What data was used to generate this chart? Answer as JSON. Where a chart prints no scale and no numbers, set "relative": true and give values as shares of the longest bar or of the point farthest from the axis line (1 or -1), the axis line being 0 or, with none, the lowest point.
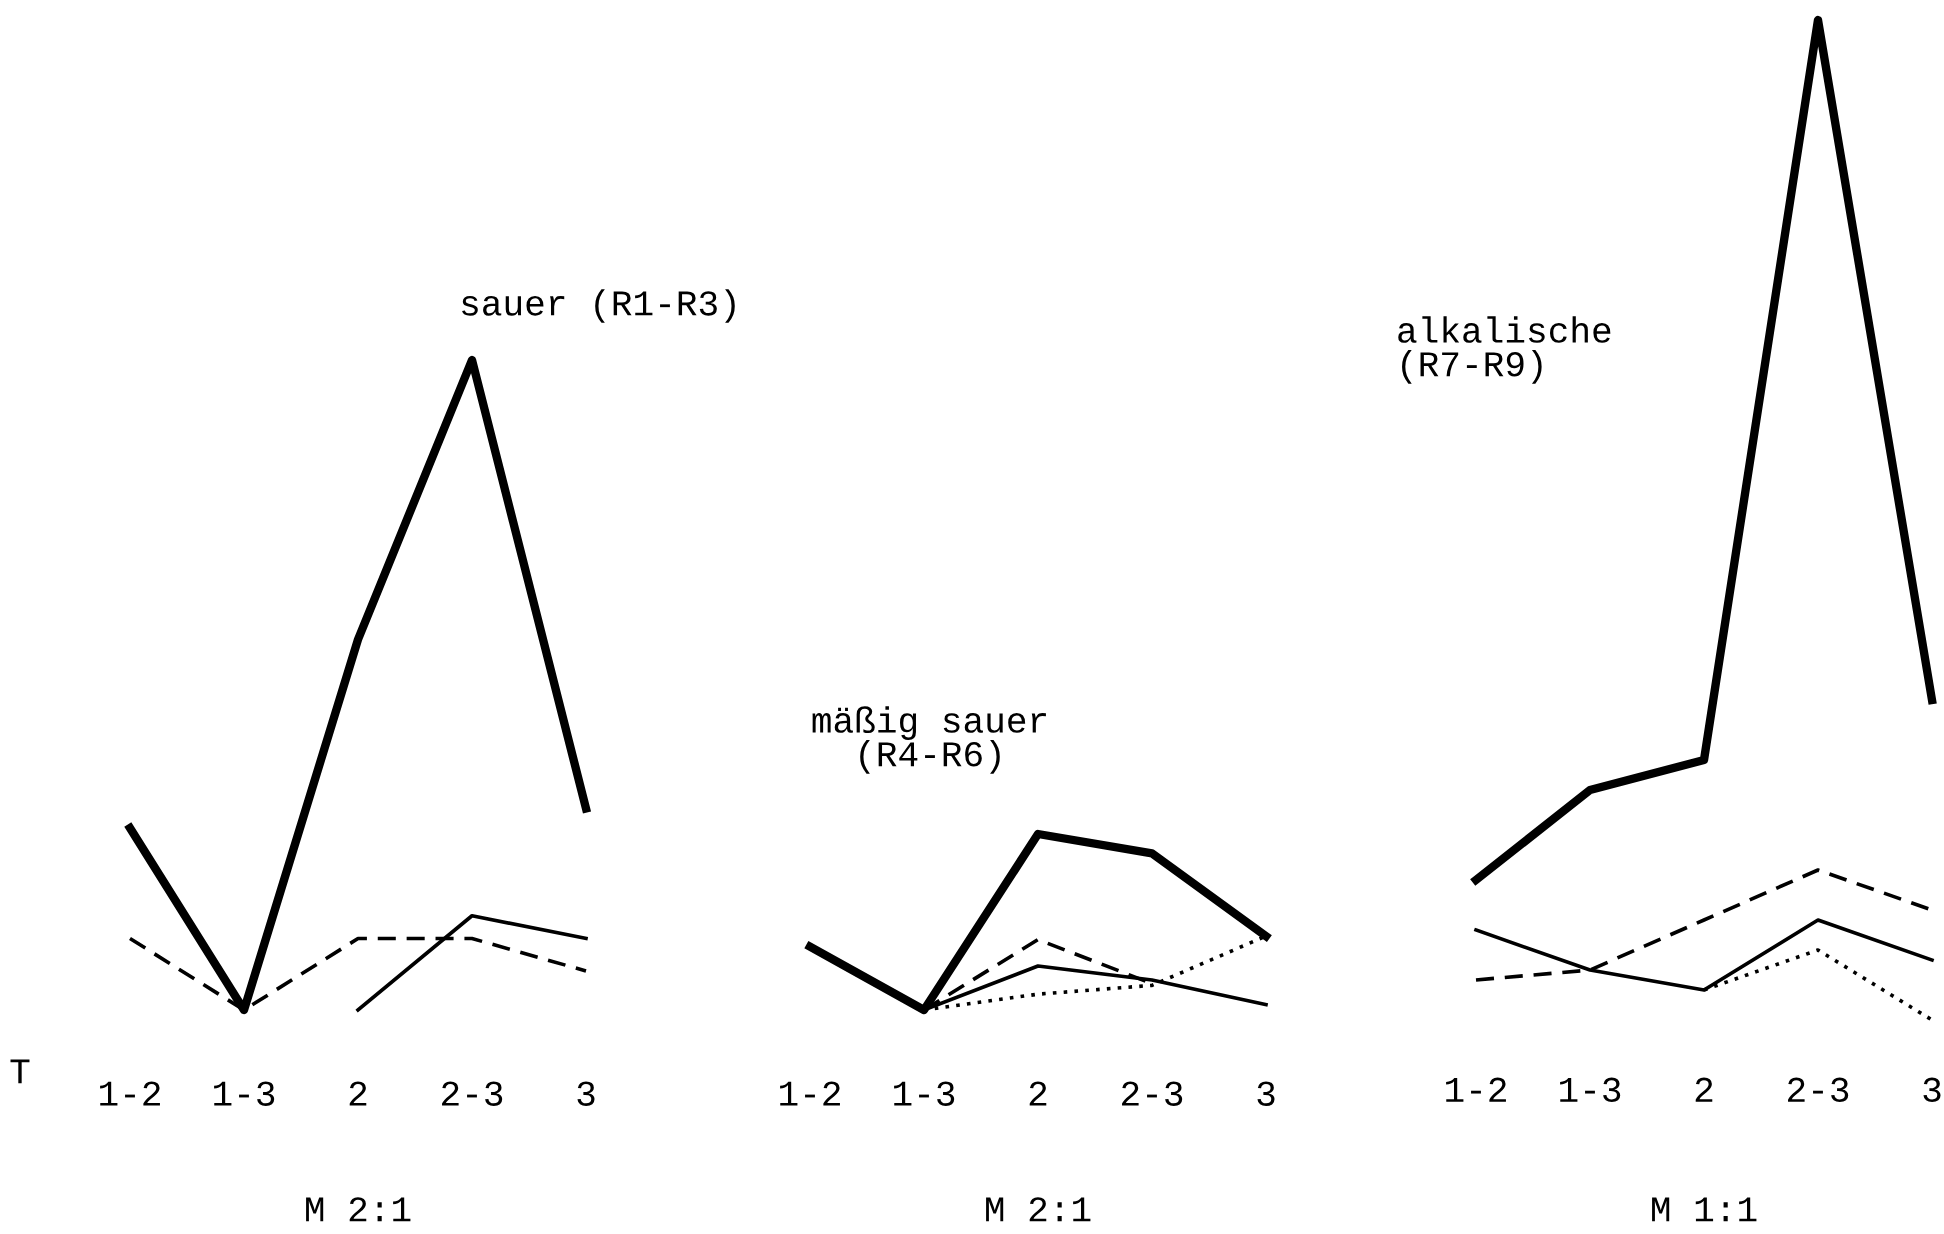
{
  "chart_data": [
    {
      "type": "line",
      "title": "sauer (R1-R3)",
      "xlabel": "T",
      "categories": [
        "1-2",
        "1-3",
        "2",
        "2-3",
        "3"
      ],
      "relative": true,
      "tick_labels": "x",
      "grid": false,
      "legend": false,
      "annotations": [
        "M 2:1"
      ],
      "series": [
        {
          "color": "#000000",
          "line_style": "solid",
          "values": [
            0.28,
            0,
            0.57,
            1,
            0.31
          ]
        },
        {
          "color": "#000000",
          "line_style": "dashed",
          "values": [
            0.11,
            0,
            0.11,
            0.11,
            0.06
          ]
        },
        {
          "color": "#000000",
          "line_style": "solid",
          "values": [
            null,
            null,
            0,
            0.145,
            0.11
          ]
        }
      ]
    },
    {
      "type": "line",
      "title": "mäßig sauer\n(R4-R6)",
      "categories": [
        "1-2",
        "1-3",
        "2",
        "2-3",
        "3"
      ],
      "relative": true,
      "tick_labels": "x",
      "grid": false,
      "legend": false,
      "annotations": [
        "M 2:1"
      ],
      "series": [
        {
          "color": "#000000",
          "line_style": "solid",
          "values": [
            0.36,
            0,
            1,
            0.89,
            0.42
          ]
        },
        {
          "color": "#000000",
          "line_style": "dashed",
          "values": [
            null,
            0,
            0.4,
            0.15,
            null
          ]
        },
        {
          "color": "#000000",
          "line_style": "solid",
          "values": [
            null,
            0,
            0.25,
            0.17,
            0.03
          ]
        },
        {
          "color": "#000000",
          "line_style": "dotted",
          "values": [
            null,
            0,
            0.09,
            0.14,
            0.42
          ]
        }
      ]
    },
    {
      "type": "line",
      "title": "alkalische\n(R7-R9)",
      "categories": [
        "1-2",
        "1-3",
        "2",
        "2-3",
        "3"
      ],
      "relative": true,
      "tick_labels": "x",
      "grid": false,
      "legend": false,
      "annotations": [
        "M 1:1"
      ],
      "series": [
        {
          "color": "#000000",
          "line_style": "solid",
          "values": [
            0.14,
            0.23,
            0.26,
            1,
            0.32
          ]
        },
        {
          "color": "#000000",
          "line_style": "dashed",
          "values": [
            0.04,
            0.05,
            0.1,
            0.15,
            0.11
          ]
        },
        {
          "color": "#000000",
          "line_style": "solid",
          "values": [
            0.09,
            0.05,
            0.03,
            0.1,
            0.06
          ]
        },
        {
          "color": "#000000",
          "line_style": "dotted",
          "values": [
            null,
            null,
            0.03,
            0.07,
            0
          ]
        }
      ]
    }
  ]
}
